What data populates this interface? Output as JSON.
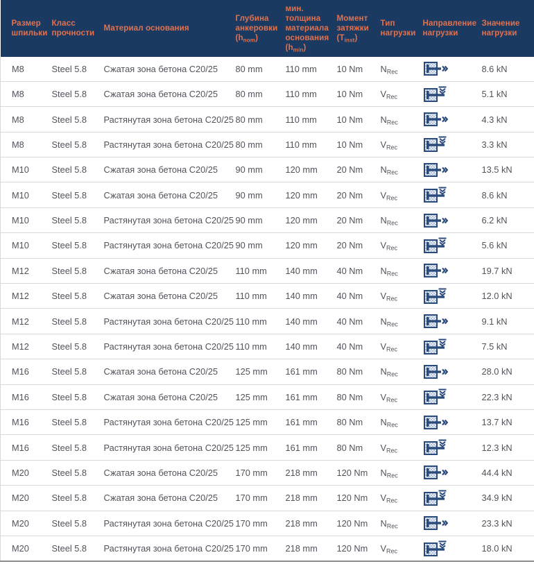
{
  "colors": {
    "header_bg": "#1b3a61",
    "header_text": "#e2714e",
    "body_text": "#52525c",
    "row_border": "#d9d9d9",
    "bottom_border": "#8a8a8a",
    "icon_navy": "#2a4a7c",
    "icon_hatch": "#aabdd8"
  },
  "table": {
    "headers": [
      {
        "id": "size",
        "label": "Размер шпильки"
      },
      {
        "id": "strength-class",
        "label": "Класс прочности"
      },
      {
        "id": "material",
        "label": "Материал основания"
      },
      {
        "id": "anchor-depth",
        "label": "Глубина анкеровки (h_nom)"
      },
      {
        "id": "min-thickness",
        "label": "мин. толщина материала основания (h_min)"
      },
      {
        "id": "torque",
        "label": "Момент затяжки (T_inst)"
      },
      {
        "id": "load-type",
        "label": "Тип нагрузки"
      },
      {
        "id": "load-direction",
        "label": "Направление нагрузки"
      },
      {
        "id": "load-value",
        "label": "Значение нагрузки"
      }
    ],
    "rows": [
      {
        "size": "M8",
        "strength_class": "Steel 5.8",
        "base_material": "Сжатая зона бетона C20/25",
        "anchor_depth": "80 mm",
        "min_thickness": "110 mm",
        "torque": "10 Nm",
        "load_type": "N_Rec",
        "load_direction_icon": "tension-load-icon",
        "load_value": "8.6 kN"
      },
      {
        "size": "M8",
        "strength_class": "Steel 5.8",
        "base_material": "Сжатая зона бетона C20/25",
        "anchor_depth": "80 mm",
        "min_thickness": "110 mm",
        "torque": "10 Nm",
        "load_type": "V_Rec",
        "load_direction_icon": "shear-load-icon",
        "load_value": "5.1 kN"
      },
      {
        "size": "M8",
        "strength_class": "Steel 5.8",
        "base_material": "Растянутая зона бетона C20/25",
        "anchor_depth": "80 mm",
        "min_thickness": "110 mm",
        "torque": "10 Nm",
        "load_type": "N_Rec",
        "load_direction_icon": "tension-load-icon",
        "load_value": "4.3 kN"
      },
      {
        "size": "M8",
        "strength_class": "Steel 5.8",
        "base_material": "Растянутая зона бетона C20/25",
        "anchor_depth": "80 mm",
        "min_thickness": "110 mm",
        "torque": "10 Nm",
        "load_type": "V_Rec",
        "load_direction_icon": "shear-load-icon",
        "load_value": "3.3 kN"
      },
      {
        "size": "M10",
        "strength_class": "Steel 5.8",
        "base_material": "Сжатая зона бетона C20/25",
        "anchor_depth": "90 mm",
        "min_thickness": "120 mm",
        "torque": "20 Nm",
        "load_type": "N_Rec",
        "load_direction_icon": "tension-load-icon",
        "load_value": "13.5 kN"
      },
      {
        "size": "M10",
        "strength_class": "Steel 5.8",
        "base_material": "Сжатая зона бетона C20/25",
        "anchor_depth": "90 mm",
        "min_thickness": "120 mm",
        "torque": "20 Nm",
        "load_type": "V_Rec",
        "load_direction_icon": "shear-load-icon",
        "load_value": "8.6 kN"
      },
      {
        "size": "M10",
        "strength_class": "Steel 5.8",
        "base_material": "Растянутая зона бетона C20/25",
        "anchor_depth": "90 mm",
        "min_thickness": "120 mm",
        "torque": "20 Nm",
        "load_type": "N_Rec",
        "load_direction_icon": "tension-load-icon",
        "load_value": "6.2 kN"
      },
      {
        "size": "M10",
        "strength_class": "Steel 5.8",
        "base_material": "Растянутая зона бетона C20/25",
        "anchor_depth": "90 mm",
        "min_thickness": "120 mm",
        "torque": "20 Nm",
        "load_type": "V_Rec",
        "load_direction_icon": "shear-load-icon",
        "load_value": "5.6 kN"
      },
      {
        "size": "M12",
        "strength_class": "Steel 5.8",
        "base_material": "Сжатая зона бетона C20/25",
        "anchor_depth": "110 mm",
        "min_thickness": "140 mm",
        "torque": "40 Nm",
        "load_type": "N_Rec",
        "load_direction_icon": "tension-load-icon",
        "load_value": "19.7 kN"
      },
      {
        "size": "M12",
        "strength_class": "Steel 5.8",
        "base_material": "Сжатая зона бетона C20/25",
        "anchor_depth": "110 mm",
        "min_thickness": "140 mm",
        "torque": "40 Nm",
        "load_type": "V_Rec",
        "load_direction_icon": "shear-load-icon",
        "load_value": "12.0 kN"
      },
      {
        "size": "M12",
        "strength_class": "Steel 5.8",
        "base_material": "Растянутая зона бетона C20/25",
        "anchor_depth": "110 mm",
        "min_thickness": "140 mm",
        "torque": "40 Nm",
        "load_type": "N_Rec",
        "load_direction_icon": "tension-load-icon",
        "load_value": "9.1 kN"
      },
      {
        "size": "M12",
        "strength_class": "Steel 5.8",
        "base_material": "Растянутая зона бетона C20/25",
        "anchor_depth": "110 mm",
        "min_thickness": "140 mm",
        "torque": "40 Nm",
        "load_type": "V_Rec",
        "load_direction_icon": "shear-load-icon",
        "load_value": "7.5 kN"
      },
      {
        "size": "M16",
        "strength_class": "Steel 5.8",
        "base_material": "Сжатая зона бетона C20/25",
        "anchor_depth": "125 mm",
        "min_thickness": "161 mm",
        "torque": "80 Nm",
        "load_type": "N_Rec",
        "load_direction_icon": "tension-load-icon",
        "load_value": "28.0 kN"
      },
      {
        "size": "M16",
        "strength_class": "Steel 5.8",
        "base_material": "Сжатая зона бетона C20/25",
        "anchor_depth": "125 mm",
        "min_thickness": "161 mm",
        "torque": "80 Nm",
        "load_type": "V_Rec",
        "load_direction_icon": "shear-load-icon",
        "load_value": "22.3 kN"
      },
      {
        "size": "M16",
        "strength_class": "Steel 5.8",
        "base_material": "Растянутая зона бетона C20/25",
        "anchor_depth": "125 mm",
        "min_thickness": "161 mm",
        "torque": "80 Nm",
        "load_type": "N_Rec",
        "load_direction_icon": "tension-load-icon",
        "load_value": "13.7 kN"
      },
      {
        "size": "M16",
        "strength_class": "Steel 5.8",
        "base_material": "Растянутая зона бетона C20/25",
        "anchor_depth": "125 mm",
        "min_thickness": "161 mm",
        "torque": "80 Nm",
        "load_type": "V_Rec",
        "load_direction_icon": "shear-load-icon",
        "load_value": "12.3 kN"
      },
      {
        "size": "M20",
        "strength_class": "Steel 5.8",
        "base_material": "Сжатая зона бетона C20/25",
        "anchor_depth": "170 mm",
        "min_thickness": "218 mm",
        "torque": "120 Nm",
        "load_type": "N_Rec",
        "load_direction_icon": "tension-load-icon",
        "load_value": "44.4 kN"
      },
      {
        "size": "M20",
        "strength_class": "Steel 5.8",
        "base_material": "Сжатая зона бетона C20/25",
        "anchor_depth": "170 mm",
        "min_thickness": "218 mm",
        "torque": "120 Nm",
        "load_type": "V_Rec",
        "load_direction_icon": "shear-load-icon",
        "load_value": "34.9 kN"
      },
      {
        "size": "M20",
        "strength_class": "Steel 5.8",
        "base_material": "Растянутая зона бетона C20/25",
        "anchor_depth": "170 mm",
        "min_thickness": "218 mm",
        "torque": "120 Nm",
        "load_type": "N_Rec",
        "load_direction_icon": "tension-load-icon",
        "load_value": "23.3 kN"
      },
      {
        "size": "M20",
        "strength_class": "Steel 5.8",
        "base_material": "Растянутая зона бетона C20/25",
        "anchor_depth": "170 mm",
        "min_thickness": "218 mm",
        "torque": "120 Nm",
        "load_type": "V_Rec",
        "load_direction_icon": "shear-load-icon",
        "load_value": "18.0 kN"
      }
    ]
  }
}
